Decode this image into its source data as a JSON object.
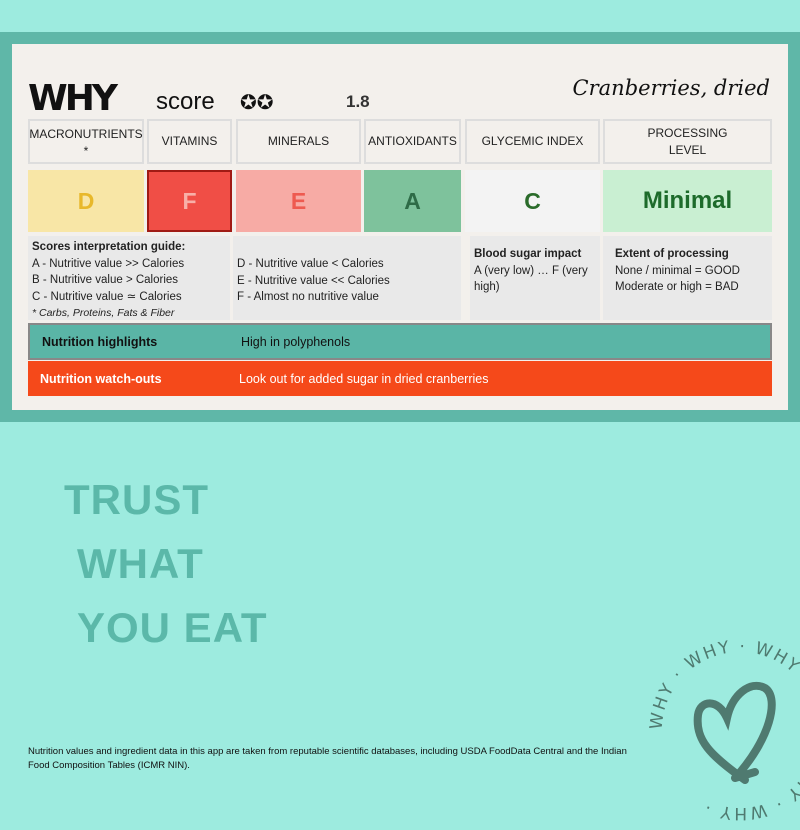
{
  "header": {
    "logo": "WHY",
    "score_label": "score",
    "stars": "✪✪",
    "score_value": "1.8",
    "product": "Cranberries, dried"
  },
  "columns": [
    {
      "label": "MACRONUTRIENTS *",
      "grade": "D",
      "bg": "#f8e6a6",
      "color": "#e8b82a"
    },
    {
      "label": "VITAMINS",
      "grade": "F",
      "bg": "#f04e46",
      "color": "#f8b0a8"
    },
    {
      "label": "MINERALS",
      "grade": "E",
      "bg": "#f7aba5",
      "color": "#ee5a50"
    },
    {
      "label": "ANTIOXIDANTS",
      "grade": "A",
      "bg": "#7ec29c",
      "color": "#2e6b47"
    },
    {
      "label": "GLYCEMIC INDEX",
      "grade": "C",
      "bg": "#f3f3f3",
      "color": "#2a6b2a"
    },
    {
      "label": "PROCESSING LEVEL",
      "grade": "Minimal",
      "bg": "#c9efd2",
      "color": "#1d6b2b"
    }
  ],
  "guide": {
    "title": "Scores interpretation guide:",
    "lines_left": [
      "A - Nutritive value >> Calories",
      "B - Nutritive value > Calories",
      "C - Nutritive value ≃ Calories"
    ],
    "footnote": "* Carbs, Proteins, Fats & Fiber",
    "lines_mid": [
      "D - Nutritive value < Calories",
      "E - Nutritive value << Calories",
      "F - Almost no nutritive value"
    ],
    "gi_title": "Blood sugar impact",
    "gi_text": "A (very low) … F (very high)",
    "proc_title": "Extent of processing",
    "proc_lines": [
      "None / minimal = GOOD",
      "Moderate or high = BAD"
    ]
  },
  "highlights": {
    "label": "Nutrition highlights",
    "text": "High in polyphenols",
    "color": "#5ab5a6"
  },
  "watchouts": {
    "label": "Nutrition watch-outs",
    "text": "Look out for added sugar in dried cranberries",
    "color": "#f5491a"
  },
  "tagline": [
    "TRUST",
    "WHAT",
    "YOU EAT"
  ],
  "footer": "Nutrition values and ingredient data in this app are taken from reputable scientific databases, including USDA FoodData Central and the Indian Food Composition Tables (ICMR NIN).",
  "badge": {
    "ring_text": "WHY · WHY · WHY · WHY · WHY · WHY ·"
  }
}
